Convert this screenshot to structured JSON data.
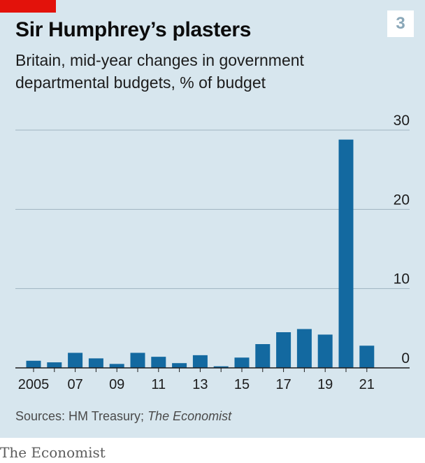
{
  "header": {
    "title": "Sir Humphrey’s plasters",
    "badge": "3",
    "subtitle": "Britain, mid-year changes in government departmental budgets, % of budget"
  },
  "footer": {
    "source_prefix": "Sources: HM Treasury; ",
    "source_italic": "The Economist",
    "brand": "The Economist"
  },
  "colors": {
    "bar": "#1369a0",
    "panel": "#d7e6ee",
    "grid": "#9fb4c0",
    "brand_red": "#e3120b"
  },
  "chart_data": {
    "type": "bar",
    "x": [
      2005,
      2006,
      2007,
      2008,
      2009,
      2010,
      2011,
      2012,
      2013,
      2014,
      2015,
      2016,
      2017,
      2018,
      2019,
      2020,
      2021
    ],
    "values": [
      0.9,
      0.7,
      1.9,
      1.2,
      0.5,
      1.9,
      1.4,
      0.6,
      1.6,
      0.2,
      1.3,
      3.0,
      4.5,
      4.9,
      4.2,
      28.8,
      2.8
    ],
    "x_tick_labels": [
      "2005",
      "07",
      "09",
      "11",
      "13",
      "15",
      "17",
      "19",
      "21"
    ],
    "x_tick_years": [
      2005,
      2007,
      2009,
      2011,
      2013,
      2015,
      2017,
      2019,
      2021
    ],
    "y_ticks": [
      0,
      10,
      20,
      30
    ],
    "ylim": [
      0,
      30
    ],
    "grid": true,
    "y_axis_side": "right"
  }
}
